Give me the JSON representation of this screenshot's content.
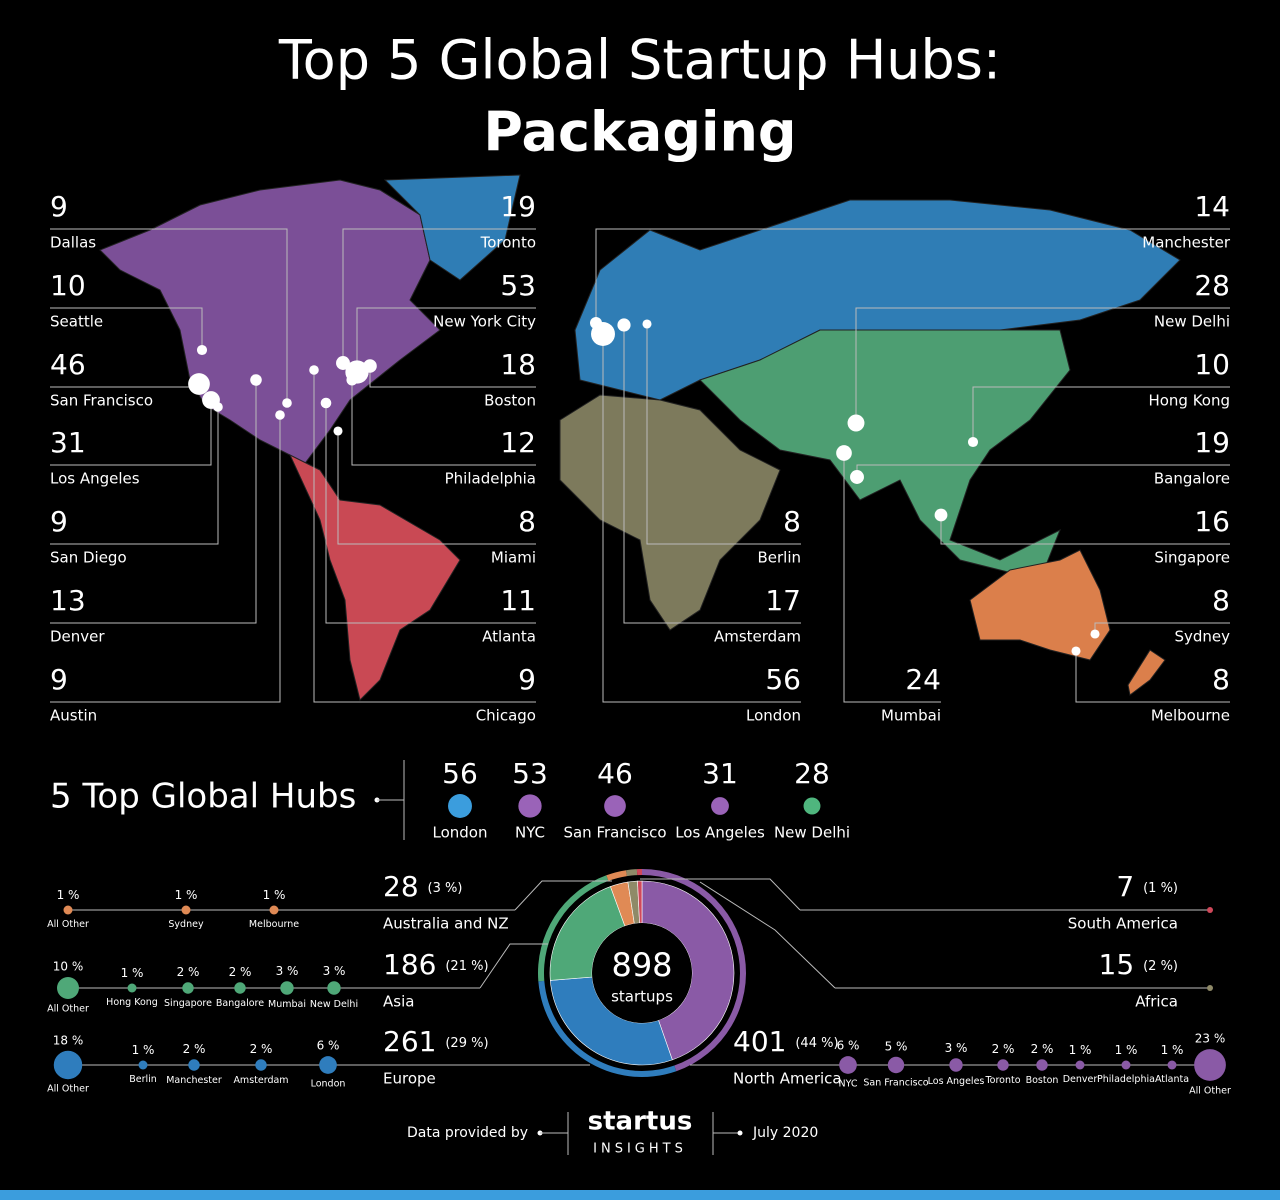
{
  "title": "Top 5 Global Startup Hubs:",
  "subtitle": "Packaging",
  "cities": [
    {
      "name": "Dallas",
      "value": 9
    },
    {
      "name": "Seattle",
      "value": 10
    },
    {
      "name": "San Francisco",
      "value": 46
    },
    {
      "name": "Los Angeles",
      "value": 31
    },
    {
      "name": "San Diego",
      "value": 9
    },
    {
      "name": "Denver",
      "value": 13
    },
    {
      "name": "Austin",
      "value": 9
    },
    {
      "name": "Toronto",
      "value": 19
    },
    {
      "name": "New York City",
      "value": 53
    },
    {
      "name": "Boston",
      "value": 18
    },
    {
      "name": "Philadelphia",
      "value": 12
    },
    {
      "name": "Miami",
      "value": 8
    },
    {
      "name": "Atlanta",
      "value": 11
    },
    {
      "name": "Chicago",
      "value": 9
    },
    {
      "name": "Berlin",
      "value": 8
    },
    {
      "name": "Amsterdam",
      "value": 17
    },
    {
      "name": "London",
      "value": 56
    },
    {
      "name": "Mumbai",
      "value": 24
    },
    {
      "name": "Manchester",
      "value": 14
    },
    {
      "name": "New Delhi",
      "value": 28
    },
    {
      "name": "Hong Kong",
      "value": 10
    },
    {
      "name": "Bangalore",
      "value": 19
    },
    {
      "name": "Singapore",
      "value": 16
    },
    {
      "name": "Sydney",
      "value": 8
    },
    {
      "name": "Melbourne",
      "value": 8
    }
  ],
  "top_hubs_title": "5 Top Global Hubs",
  "top_hubs": [
    {
      "name": "London",
      "value": 56,
      "color": "#3b9ddd"
    },
    {
      "name": "NYC",
      "value": 53,
      "color": "#9a63b8"
    },
    {
      "name": "San Francisco",
      "value": 46,
      "color": "#9a63b8"
    },
    {
      "name": "Los Angeles",
      "value": 31,
      "color": "#9a63b8"
    },
    {
      "name": "New Delhi",
      "value": 28,
      "color": "#4fb67e"
    }
  ],
  "chart_data": {
    "type": "pie",
    "center_value": 898,
    "center_label": "startups",
    "regions": [
      {
        "name": "North America",
        "value": 401,
        "share_label": "(44 %)",
        "color": "#8a5aa6",
        "items": [
          {
            "name": "NYC",
            "value": 6,
            "value_label": "6 %"
          },
          {
            "name": "San Francisco",
            "value": 5,
            "value_label": "5 %"
          },
          {
            "name": "Los Angeles",
            "value": 3,
            "value_label": "3 %"
          },
          {
            "name": "Toronto",
            "value": 2,
            "value_label": "2 %"
          },
          {
            "name": "Boston",
            "value": 2,
            "value_label": "2 %"
          },
          {
            "name": "Denver",
            "value": 1,
            "value_label": "1 %"
          },
          {
            "name": "Philadelphia",
            "value": 1,
            "value_label": "1 %"
          },
          {
            "name": "Atlanta",
            "value": 1,
            "value_label": "1 %"
          },
          {
            "name": "All Other",
            "value": 23,
            "value_label": "23 %"
          }
        ]
      },
      {
        "name": "Europe",
        "value": 261,
        "share_label": "(29 %)",
        "color": "#2f7dbd",
        "items": [
          {
            "name": "All Other",
            "value": 18,
            "value_label": "18 %"
          },
          {
            "name": "Berlin",
            "value": 1,
            "value_label": "1 %"
          },
          {
            "name": "Manchester",
            "value": 2,
            "value_label": "2 %"
          },
          {
            "name": "Amsterdam",
            "value": 2,
            "value_label": "2 %"
          },
          {
            "name": "London",
            "value": 6,
            "value_label": "6 %"
          }
        ]
      },
      {
        "name": "Asia",
        "value": 186,
        "share_label": "(21 %)",
        "color": "#4fa878",
        "items": [
          {
            "name": "All Other",
            "value": 10,
            "value_label": "10 %"
          },
          {
            "name": "Hong Kong",
            "value": 1,
            "value_label": "1 %"
          },
          {
            "name": "Singapore",
            "value": 2,
            "value_label": "2 %"
          },
          {
            "name": "Bangalore",
            "value": 2,
            "value_label": "2 %"
          },
          {
            "name": "Mumbai",
            "value": 3,
            "value_label": "3 %"
          },
          {
            "name": "New Delhi",
            "value": 3,
            "value_label": "3 %"
          }
        ]
      },
      {
        "name": "Australia and NZ",
        "value": 28,
        "share_label": "(3 %)",
        "color": "#e08a55",
        "items": [
          {
            "name": "All Other",
            "value": 1,
            "value_label": "1 %"
          },
          {
            "name": "Sydney",
            "value": 1,
            "value_label": "1 %"
          },
          {
            "name": "Melbourne",
            "value": 1,
            "value_label": "1 %"
          }
        ]
      },
      {
        "name": "Africa",
        "value": 15,
        "share_label": "(2 %)",
        "color": "#8f8a68",
        "items": []
      },
      {
        "name": "South America",
        "value": 7,
        "share_label": "(1 %)",
        "color": "#d0485a",
        "items": []
      }
    ]
  },
  "footer": {
    "credit": "Data provided by",
    "brand_top": "startus",
    "brand_bottom": "INSIGHTS",
    "date": "July 2020"
  }
}
